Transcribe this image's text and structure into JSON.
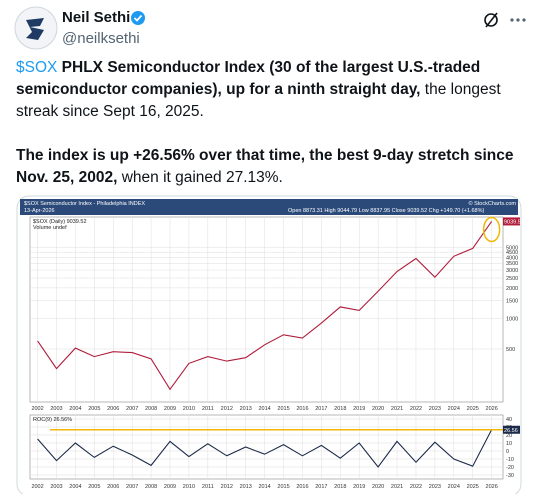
{
  "header": {
    "name": "Neil Sethi",
    "handle": "@neilksethi"
  },
  "post": {
    "paragraphs": [
      {
        "link": "$SOX",
        "bold": "PHLX Semiconductor Index (30 of the largest U.S.-traded semiconductor companies), up for a ninth straight day,",
        "text": "the longest streak since Sept 16, 2025."
      },
      {
        "bold": "The index is up +26.56% over that time, the best 9-day stretch since Nov. 25, 2002,",
        "text": "when it gained 27.13%."
      }
    ]
  },
  "chart_data": [
    {
      "type": "line",
      "title": "$SOX Semiconductor Index - Philadelphia INDEX",
      "date": "13-Apr-2026",
      "quote": "Open 8873.31 High 9044.79 Low 8837.95 Close 9039.52 Chg +149.70 (+1.68%)",
      "credit": "© StockCharts.com",
      "note": "Volume undef",
      "log_scale": true,
      "grid": true,
      "x": [
        2002,
        2003,
        2004,
        2005,
        2006,
        2007,
        2008,
        2009,
        2010,
        2011,
        2012,
        2013,
        2014,
        2015,
        2016,
        2017,
        2018,
        2019,
        2020,
        2021,
        2022,
        2023,
        2024,
        2025,
        2026
      ],
      "series": [
        {
          "name": "$SOX (Daily) 9039.52",
          "color": "#b01c3a",
          "values": [
            600,
            320,
            510,
            420,
            470,
            460,
            400,
            200,
            360,
            420,
            380,
            410,
            550,
            690,
            640,
            900,
            1300,
            1200,
            1850,
            2900,
            3900,
            2550,
            4100,
            4900,
            9039.52
          ]
        }
      ],
      "xlim": [
        2001.6,
        2026.6
      ],
      "xticks": [
        2002,
        2003,
        2004,
        2005,
        2006,
        2007,
        2008,
        2009,
        2010,
        2011,
        2012,
        2013,
        2014,
        2015,
        2016,
        2017,
        2018,
        2019,
        2020,
        2021,
        2022,
        2023,
        2024,
        2025,
        2026
      ],
      "ylim": [
        150,
        10000
      ],
      "yticks": [
        500,
        1000,
        1500,
        2000,
        2500,
        3000,
        3500,
        4000,
        4500,
        5000
      ]
    },
    {
      "type": "line",
      "grid": true,
      "x": [
        2002,
        2003,
        2004,
        2005,
        2006,
        2007,
        2008,
        2009,
        2010,
        2011,
        2012,
        2013,
        2014,
        2015,
        2016,
        2017,
        2018,
        2019,
        2020,
        2021,
        2022,
        2023,
        2024,
        2025,
        2026
      ],
      "series": [
        {
          "name": "ROC(9) 26.56%",
          "color": "#1c2b4a",
          "values": [
            15,
            -12,
            10,
            -8,
            6,
            -5,
            -18,
            12,
            -7,
            9,
            -6,
            5,
            -4,
            8,
            -6,
            7,
            -9,
            10,
            -20,
            12,
            -14,
            11,
            -10,
            -19,
            26.56
          ]
        }
      ],
      "xlim": [
        2001.6,
        2026.6
      ],
      "xticks": [
        2002,
        2003,
        2004,
        2005,
        2006,
        2007,
        2008,
        2009,
        2010,
        2011,
        2012,
        2013,
        2014,
        2015,
        2016,
        2017,
        2018,
        2019,
        2020,
        2021,
        2022,
        2023,
        2024,
        2025,
        2026
      ],
      "ylim": [
        -35,
        45
      ],
      "yticks": [
        -30,
        -20,
        -10,
        0,
        10,
        20,
        30,
        40
      ]
    }
  ]
}
